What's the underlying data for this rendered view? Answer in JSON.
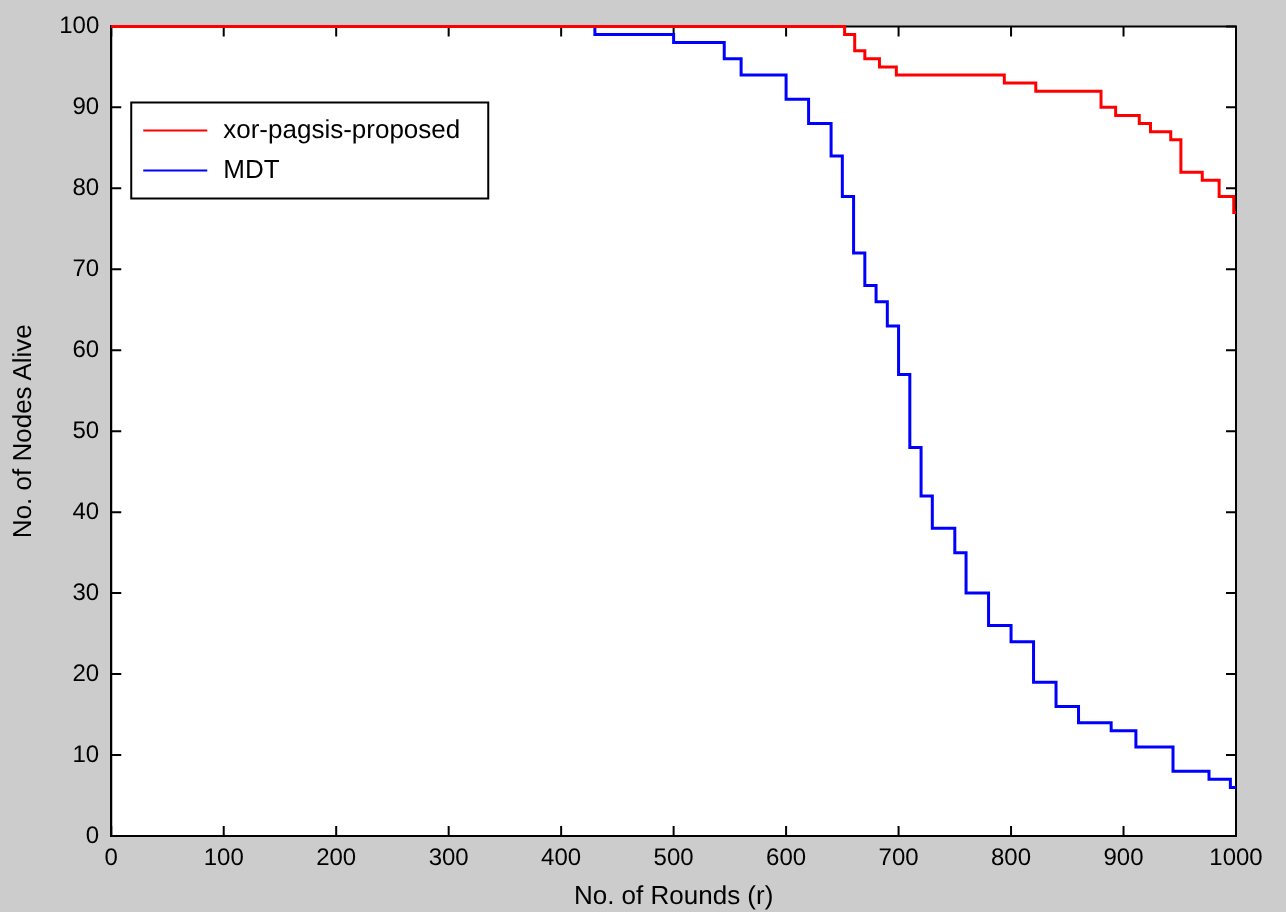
{
  "chart_data": {
    "type": "step",
    "xlabel": "No. of Rounds (r)",
    "ylabel": "No. of Nodes Alive",
    "xlim": [
      0,
      1000
    ],
    "ylim": [
      0,
      100
    ],
    "xticks": [
      0,
      100,
      200,
      300,
      400,
      500,
      600,
      700,
      800,
      900,
      1000
    ],
    "yticks": [
      0,
      10,
      20,
      30,
      40,
      50,
      60,
      70,
      80,
      90,
      100
    ],
    "legend": "top left",
    "grid": false,
    "series": [
      {
        "name": "xor-pagsis-proposed",
        "color": "#ff0000",
        "x": [
          0,
          652,
          661,
          670,
          683,
          698,
          794,
          822,
          880,
          893,
          914,
          924,
          942,
          951,
          970,
          985,
          998,
          1000
        ],
        "values": [
          100,
          99,
          97,
          96,
          95,
          94,
          93,
          92,
          90,
          89,
          88,
          87,
          86,
          82,
          81,
          79,
          77,
          77
        ]
      },
      {
        "name": "MDT",
        "color": "#0000ff",
        "x": [
          0,
          430,
          500,
          545,
          560,
          600,
          620,
          640,
          650,
          660,
          670,
          680,
          690,
          700,
          710,
          720,
          730,
          750,
          760,
          780,
          800,
          820,
          840,
          860,
          889,
          911,
          944,
          976,
          995,
          1000
        ],
        "values": [
          100,
          99,
          98,
          96,
          94,
          91,
          88,
          84,
          79,
          72,
          68,
          66,
          63,
          57,
          48,
          42,
          38,
          35,
          30,
          26,
          24,
          19,
          16,
          14,
          13,
          11,
          8,
          7,
          6,
          6
        ]
      }
    ]
  }
}
